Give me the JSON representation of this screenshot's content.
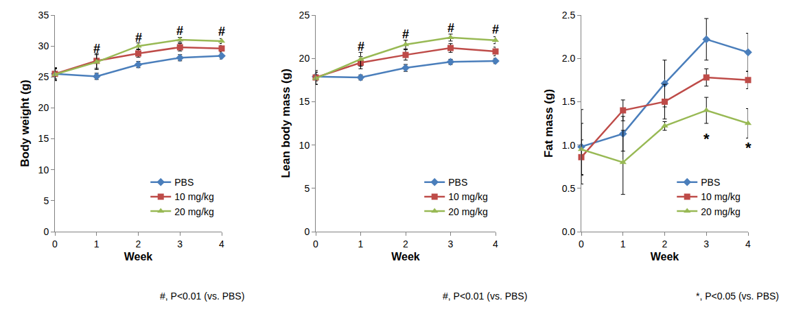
{
  "chart_data": [
    {
      "type": "line",
      "x_label": "Week",
      "y_label": "Body weight (g)",
      "x": [
        0,
        1,
        2,
        3,
        4
      ],
      "xlim": [
        0,
        4
      ],
      "xticks": [
        0,
        1,
        2,
        3,
        4
      ],
      "ylim": [
        0,
        35
      ],
      "yticks": [
        0,
        5,
        10,
        15,
        20,
        25,
        30,
        35
      ],
      "grid": false,
      "legend": "bottom right",
      "series": [
        {
          "name": "PBS",
          "color": "#4a7ebb",
          "marker": "diamond",
          "values": [
            25.5,
            25.1,
            27.0,
            28.1,
            28.4
          ],
          "errors": [
            0.8,
            0.5,
            0.5,
            0.5,
            0.5
          ]
        },
        {
          "name": "10 mg/kg",
          "color": "#be4b48",
          "marker": "square",
          "values": [
            25.5,
            27.6,
            28.8,
            29.8,
            29.6
          ],
          "errors": [
            1.0,
            1.2,
            0.6,
            0.6,
            0.5
          ]
        },
        {
          "name": "20 mg/kg",
          "color": "#98b954",
          "marker": "triangle-up",
          "values": [
            25.4,
            27.4,
            30.0,
            31.0,
            30.8
          ],
          "errors": [
            1.0,
            1.2,
            0.5,
            0.4,
            0.4
          ]
        }
      ],
      "annotations": [
        {
          "x": 1,
          "y": 29.6,
          "text": "#"
        },
        {
          "x": 2,
          "y": 31.4,
          "text": "#"
        },
        {
          "x": 3,
          "y": 32.4,
          "text": "#"
        },
        {
          "x": 4,
          "y": 32.3,
          "text": "#"
        }
      ],
      "footnote": "#, P<0.01 (vs. PBS)"
    },
    {
      "type": "line",
      "x_label": "Week",
      "y_label": "Lean body mass (g)",
      "x": [
        0,
        1,
        2,
        3,
        4
      ],
      "xlim": [
        0,
        4
      ],
      "xticks": [
        0,
        1,
        2,
        3,
        4
      ],
      "ylim": [
        0,
        25
      ],
      "yticks": [
        0,
        5,
        10,
        15,
        20,
        25
      ],
      "grid": false,
      "legend": "bottom right",
      "series": [
        {
          "name": "PBS",
          "color": "#4a7ebb",
          "marker": "diamond",
          "values": [
            17.9,
            17.8,
            18.9,
            19.6,
            19.7
          ],
          "errors": [
            0.5,
            0.3,
            0.4,
            0.3,
            0.3
          ]
        },
        {
          "name": "10 mg/kg",
          "color": "#be4b48",
          "marker": "square",
          "values": [
            17.8,
            19.5,
            20.4,
            21.2,
            20.8
          ],
          "errors": [
            0.8,
            0.7,
            0.6,
            0.5,
            0.5
          ]
        },
        {
          "name": "20 mg/kg",
          "color": "#98b954",
          "marker": "triangle-up",
          "values": [
            17.7,
            19.9,
            21.6,
            22.4,
            22.1
          ],
          "errors": [
            0.7,
            0.8,
            0.5,
            0.4,
            0.4
          ]
        }
      ],
      "annotations": [
        {
          "x": 1,
          "y": 21.4,
          "text": "#"
        },
        {
          "x": 2,
          "y": 22.8,
          "text": "#"
        },
        {
          "x": 3,
          "y": 23.5,
          "text": "#"
        },
        {
          "x": 4,
          "y": 23.3,
          "text": "#"
        }
      ],
      "footnote": "#, P<0.01 (vs. PBS)"
    },
    {
      "type": "line",
      "x_label": "Week",
      "y_label": "Fat mass (g)",
      "x": [
        0,
        1,
        2,
        3,
        4
      ],
      "xlim": [
        0,
        4
      ],
      "xticks": [
        0,
        1,
        2,
        3,
        4
      ],
      "ylim": [
        0,
        2.5
      ],
      "yticks": [
        {
          "value": 0,
          "label": "0.0"
        },
        0.5,
        {
          "value": 1,
          "label": "1.0"
        },
        1.5,
        {
          "value": 2,
          "label": "2.0"
        },
        2.5
      ],
      "grid": false,
      "legend": "bottom right",
      "series": [
        {
          "name": "PBS",
          "color": "#4a7ebb",
          "marker": "diamond",
          "values": [
            0.98,
            1.13,
            1.71,
            2.22,
            2.07
          ],
          "errors": [
            0.43,
            0.2,
            0.27,
            0.24,
            0.22
          ]
        },
        {
          "name": "10 mg/kg",
          "color": "#be4b48",
          "marker": "square",
          "values": [
            0.86,
            1.4,
            1.5,
            1.78,
            1.75
          ],
          "errors": [
            0.2,
            0.12,
            0.2,
            0.1,
            0.1
          ]
        },
        {
          "name": "20 mg/kg",
          "color": "#98b954",
          "marker": "triangle-up",
          "values": [
            0.95,
            0.8,
            1.22,
            1.4,
            1.25
          ],
          "errors": [
            0.3,
            0.37,
            0.05,
            0.15,
            0.17
          ]
        }
      ],
      "annotations": [
        {
          "x": 3,
          "y": 1.07,
          "text": "*"
        },
        {
          "x": 4,
          "y": 0.97,
          "text": "*"
        }
      ],
      "footnote": "*, P<0.05 (vs. PBS)"
    }
  ]
}
